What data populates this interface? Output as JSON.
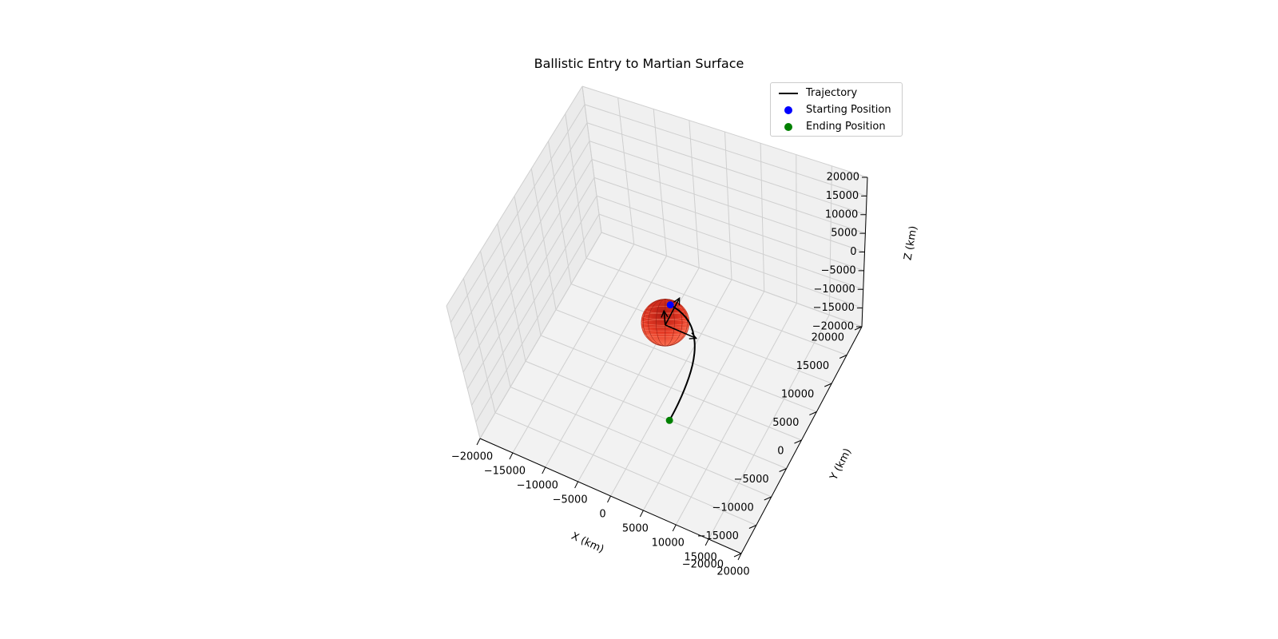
{
  "chart_data": {
    "type": "line3d",
    "title": "Ballistic Entry to Martian Surface",
    "xlabel": "X (km)",
    "ylabel": "Y (km)",
    "zlabel": "Z (km)",
    "xlim": [
      -20000,
      20000
    ],
    "ylim": [
      -20000,
      20000
    ],
    "zlim": [
      -20000,
      20000
    ],
    "xticks": [
      -20000,
      -15000,
      -10000,
      -5000,
      0,
      5000,
      10000,
      15000,
      20000
    ],
    "yticks": [
      -20000,
      -15000,
      -10000,
      -5000,
      0,
      5000,
      10000,
      15000,
      20000
    ],
    "zticks": [
      -20000,
      -15000,
      -10000,
      -5000,
      0,
      5000,
      10000,
      15000,
      20000
    ],
    "grid": true,
    "legend_position": "top-right",
    "planet": {
      "name": "Mars",
      "radius_km": 3390,
      "color": "#e8402a"
    },
    "series": [
      {
        "name": "Trajectory",
        "type": "line",
        "color": "#000000",
        "points": [
          [
            200,
            1500,
            3700
          ],
          [
            1500,
            1300,
            3650
          ],
          [
            2800,
            800,
            3550
          ],
          [
            3900,
            0,
            3400
          ],
          [
            4800,
            -1100,
            3200
          ],
          [
            5500,
            -2400,
            2950
          ],
          [
            6000,
            -3900,
            2600
          ],
          [
            6300,
            -5500,
            2200
          ],
          [
            6450,
            -7200,
            1750
          ],
          [
            6500,
            -9000,
            1250
          ],
          [
            6450,
            -10800,
            700
          ],
          [
            6300,
            -12500,
            150
          ]
        ]
      },
      {
        "name": "Starting Position",
        "type": "scatter",
        "color": "#0000ff",
        "points": [
          [
            200,
            1500,
            3700
          ]
        ]
      },
      {
        "name": "Ending Position",
        "type": "scatter",
        "color": "#008000",
        "points": [
          [
            6300,
            -12500,
            150
          ]
        ]
      }
    ],
    "vectors": [
      {
        "from": [
          0,
          0,
          0
        ],
        "to": [
          4500,
          0,
          0
        ]
      },
      {
        "from": [
          0,
          0,
          0
        ],
        "to": [
          0,
          4500,
          0
        ]
      },
      {
        "from": [
          0,
          0,
          0
        ],
        "to": [
          0,
          0,
          4500
        ]
      }
    ]
  }
}
